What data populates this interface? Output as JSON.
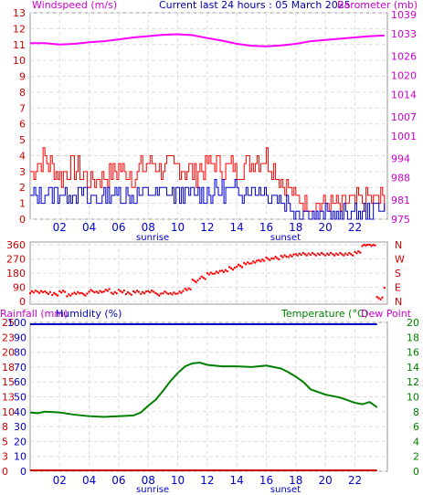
{
  "header": {
    "left": "Windspeed (m/s)",
    "center": "Current last 24 hours : 05 March 2025",
    "right": "Barometer (mb)"
  },
  "colors": {
    "wind_gust": "#ff0000",
    "wind_avg": "#0000cc",
    "barometer": "#ff00ff",
    "direction": "#ff0000",
    "rain": "#cc0000",
    "humidity": "#0000cc",
    "temperature": "#008000",
    "dew_point": "#ff00ff",
    "axis_blue": "#0000cc",
    "axis_red": "#cc0000",
    "axis_magenta": "#cc00cc",
    "axis_green": "#008000"
  },
  "time_axis": {
    "ticks": [
      "02",
      "04",
      "06",
      "08",
      "10",
      "12",
      "14",
      "16",
      "18",
      "20",
      "22"
    ],
    "sunrise": {
      "label": "sunrise",
      "hour": 8.3
    },
    "sunset": {
      "label": "sunset",
      "hour": 17.3
    },
    "x_range": [
      0,
      24.2
    ]
  },
  "chart_data": [
    {
      "type": "line",
      "title": "Current last 24 hours : 05 March 2025",
      "y_left": {
        "label": "Windspeed (m/s)",
        "ticks": [
          "0",
          "1",
          "2",
          "3",
          "4",
          "5",
          "6",
          "7",
          "8",
          "9",
          "10",
          "11",
          "12",
          "13"
        ],
        "range": [
          0,
          13
        ]
      },
      "y_right": {
        "label": "Barometer (mb)",
        "ticks": [
          "975",
          "981",
          "988",
          "994",
          "1001",
          "1007",
          "1014",
          "1020",
          "1026",
          "1033",
          "1039"
        ],
        "range": [
          975,
          1039.5
        ]
      },
      "x": [
        0,
        1,
        2,
        3,
        4,
        5,
        6,
        7,
        8,
        9,
        10,
        11,
        12,
        13,
        14,
        15,
        16,
        17,
        18,
        19,
        20,
        21,
        22,
        23,
        24
      ],
      "series": [
        {
          "name": "Windspeed (m/s)",
          "role": "gust",
          "values": [
            2.9,
            3.8,
            2.6,
            3.3,
            2.3,
            2.7,
            3.1,
            2.8,
            3.4,
            3.3,
            3.2,
            2.9,
            3.4,
            3.3,
            3.2,
            3.7,
            3.9,
            2.5,
            1.4,
            0.9,
            0.9,
            0.8,
            1.1,
            1.3,
            1.2
          ]
        },
        {
          "name": "Windspeed (m/s)",
          "role": "average",
          "values": [
            1.3,
            1.6,
            1.5,
            1.8,
            1.2,
            1.5,
            1.6,
            1.4,
            1.7,
            1.7,
            1.6,
            1.5,
            1.7,
            1.8,
            1.7,
            1.9,
            1.7,
            1.3,
            0.6,
            0.3,
            0.2,
            0.2,
            0.3,
            0.6,
            0.8
          ]
        },
        {
          "name": "Barometer (mb)",
          "values": [
            1030.0,
            1030.0,
            1029.6,
            1029.8,
            1030.3,
            1030.6,
            1031.2,
            1031.8,
            1032.2,
            1032.6,
            1032.8,
            1032.5,
            1031.6,
            1030.8,
            1029.8,
            1029.2,
            1029.0,
            1029.3,
            1029.8,
            1030.6,
            1031.0,
            1031.4,
            1031.8,
            1032.2,
            1032.4
          ]
        }
      ]
    },
    {
      "type": "scatter",
      "y_left": {
        "ticks": [
          "0",
          "90",
          "180",
          "270",
          "360"
        ],
        "range": [
          0,
          360
        ]
      },
      "y_right": {
        "ticks": [
          "N",
          "W",
          "S",
          "E",
          "N"
        ],
        "range": [
          0,
          360
        ]
      },
      "series": [
        {
          "name": "Wind direction",
          "x": [
            0,
            0.5,
            1,
            1.5,
            2,
            2.5,
            3,
            3.5,
            4,
            4.5,
            5,
            5.5,
            6,
            6.5,
            7,
            7.5,
            8,
            8.5,
            9,
            9.5,
            10,
            10.5,
            11,
            11.5,
            12,
            12.5,
            13,
            13.5,
            14,
            14.5,
            15,
            15.5,
            16,
            16.5,
            17,
            17.5,
            18,
            18.5,
            19,
            19.5,
            20,
            20.5,
            21,
            21.5,
            22,
            22.5,
            23,
            23.5,
            24
          ],
          "values": [
            60,
            62,
            55,
            45,
            60,
            40,
            55,
            45,
            65,
            58,
            70,
            55,
            65,
            50,
            60,
            55,
            65,
            45,
            55,
            48,
            58,
            80,
            130,
            150,
            175,
            185,
            195,
            210,
            225,
            240,
            250,
            262,
            270,
            275,
            285,
            290,
            300,
            300,
            300,
            300,
            300,
            300,
            300,
            300,
            310,
            360,
            360,
            20,
            90
          ]
        }
      ]
    },
    {
      "type": "line",
      "header_left": [
        "Rainfall (mm)",
        "Humidity (%)"
      ],
      "header_right": [
        "Temperature (°C)",
        "Dew Point"
      ],
      "y_left_rain": {
        "ticks": [
          "0",
          "3",
          "5",
          "8",
          "10",
          "13",
          "15",
          "18",
          "20",
          "23",
          "25"
        ],
        "range": [
          0,
          25
        ]
      },
      "y_left_humidity": {
        "ticks": [
          "0",
          "10",
          "20",
          "30",
          "40",
          "50",
          "60",
          "70",
          "80",
          "90",
          "100"
        ],
        "range": [
          0,
          100
        ]
      },
      "y_right": {
        "ticks": [
          "0",
          "2",
          "4",
          "6",
          "8",
          "10",
          "12",
          "14",
          "16",
          "18",
          "20"
        ],
        "range": [
          0,
          20
        ]
      },
      "x": [
        0,
        0.5,
        1,
        2,
        3,
        4,
        5,
        6,
        7,
        7.5,
        8,
        8.5,
        9,
        9.5,
        10,
        10.5,
        11,
        11.5,
        12,
        13,
        14,
        15,
        16,
        16.5,
        17,
        17.5,
        18,
        18.5,
        19,
        20,
        21,
        22,
        22.5,
        23,
        23.5
      ],
      "series": [
        {
          "name": "Temperature (°C)",
          "values": [
            7.9,
            7.8,
            8.0,
            7.9,
            7.6,
            7.4,
            7.3,
            7.4,
            7.5,
            7.9,
            8.8,
            9.6,
            10.8,
            12.1,
            13.2,
            14.1,
            14.5,
            14.6,
            14.3,
            14.1,
            14.1,
            14.0,
            14.2,
            14.0,
            13.8,
            13.3,
            12.7,
            12.0,
            11.0,
            10.3,
            9.9,
            9.2,
            9.0,
            9.3,
            8.6
          ]
        },
        {
          "name": "Humidity (%)",
          "values": [
            100,
            100,
            100,
            100,
            100,
            100,
            100,
            100,
            100,
            100,
            100,
            100,
            100,
            100,
            100,
            100,
            100,
            100,
            100,
            100,
            100,
            100,
            100,
            100,
            100,
            100,
            100,
            100,
            100,
            100,
            100,
            100,
            100,
            100,
            100
          ]
        },
        {
          "name": "Rainfall (mm)",
          "values": [
            0,
            0,
            0,
            0,
            0,
            0,
            0,
            0,
            0,
            0,
            0,
            0,
            0,
            0,
            0,
            0,
            0,
            0,
            0,
            0,
            0,
            0,
            0,
            0,
            0,
            0,
            0,
            0,
            0,
            0,
            0,
            0,
            0,
            0,
            0
          ]
        }
      ]
    }
  ]
}
